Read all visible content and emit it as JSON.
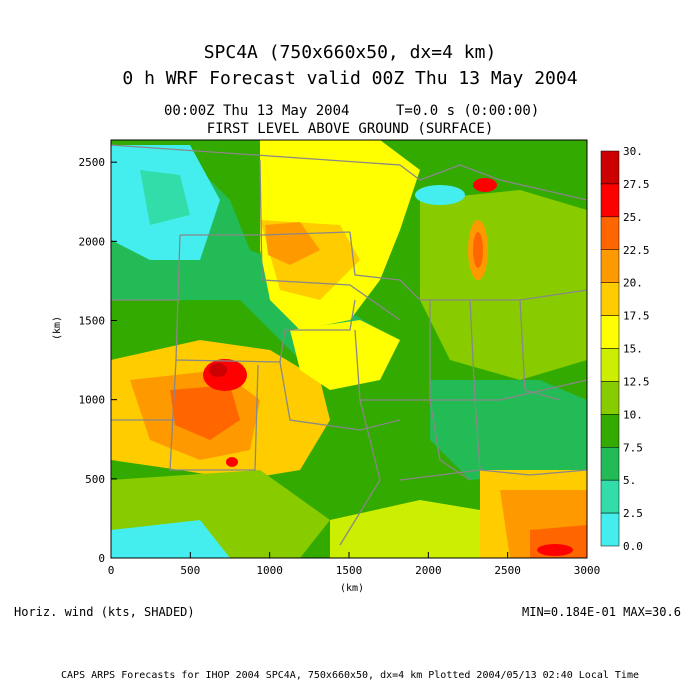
{
  "header": {
    "title_line1": "SPC4A (750x660x50, dx=4 km)",
    "title_line2": "0 h WRF Forecast valid 00Z Thu 13 May 2004",
    "valid_time": "00:00Z Thu 13 May 2004",
    "time_step": "T=0.0 s (0:00:00)",
    "level": "FIRST LEVEL ABOVE GROUND (SURFACE)"
  },
  "axes": {
    "x_label": "(km)",
    "y_label": "(km)",
    "x_ticks": [
      "0",
      "500",
      "1000",
      "1500",
      "2000",
      "2500",
      "3000"
    ],
    "y_ticks": [
      "0",
      "500",
      "1000",
      "1500",
      "2000",
      "2500"
    ]
  },
  "colorbar": {
    "labels": [
      "30.",
      "27.5",
      "25.",
      "22.5",
      "20.",
      "17.5",
      "15.",
      "12.5",
      "10.",
      "7.5",
      "5.",
      "2.5",
      "0.0"
    ],
    "colors": [
      "#cc0000",
      "#ff0000",
      "#ff6600",
      "#ff9900",
      "#ffcc00",
      "#ffff00",
      "#ccee00",
      "#88cc00",
      "#33aa00",
      "#22bb55",
      "#33ddaa",
      "#44eeee"
    ]
  },
  "footer": {
    "variable": "Horiz. wind (kts, SHADED)",
    "minmax": "MIN=0.184E-01 MAX=30.6",
    "credit": "CAPS ARPS Forecasts for IHOP 2004  SPC4A, 750x660x50, dx=4 km  Plotted 2004/05/13 02:40 Local Time"
  }
}
